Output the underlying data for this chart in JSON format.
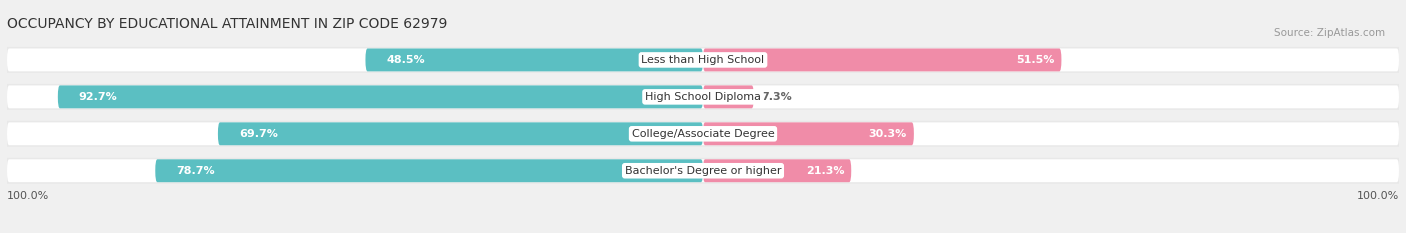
{
  "title": "OCCUPANCY BY EDUCATIONAL ATTAINMENT IN ZIP CODE 62979",
  "source": "Source: ZipAtlas.com",
  "categories": [
    "Less than High School",
    "High School Diploma",
    "College/Associate Degree",
    "Bachelor's Degree or higher"
  ],
  "owner_pct": [
    48.5,
    92.7,
    69.7,
    78.7
  ],
  "renter_pct": [
    51.5,
    7.3,
    30.3,
    21.3
  ],
  "owner_color": "#5bbfc2",
  "renter_color": "#f08ca8",
  "owner_color_dark": "#3aa8ab",
  "background_color": "#f0f0f0",
  "bar_background": "#e8e8e8",
  "bar_inner": "#ffffff",
  "title_fontsize": 10,
  "source_fontsize": 7.5,
  "label_fontsize": 8,
  "cat_fontsize": 8,
  "bar_height": 0.62,
  "axis_label": "100.0%"
}
